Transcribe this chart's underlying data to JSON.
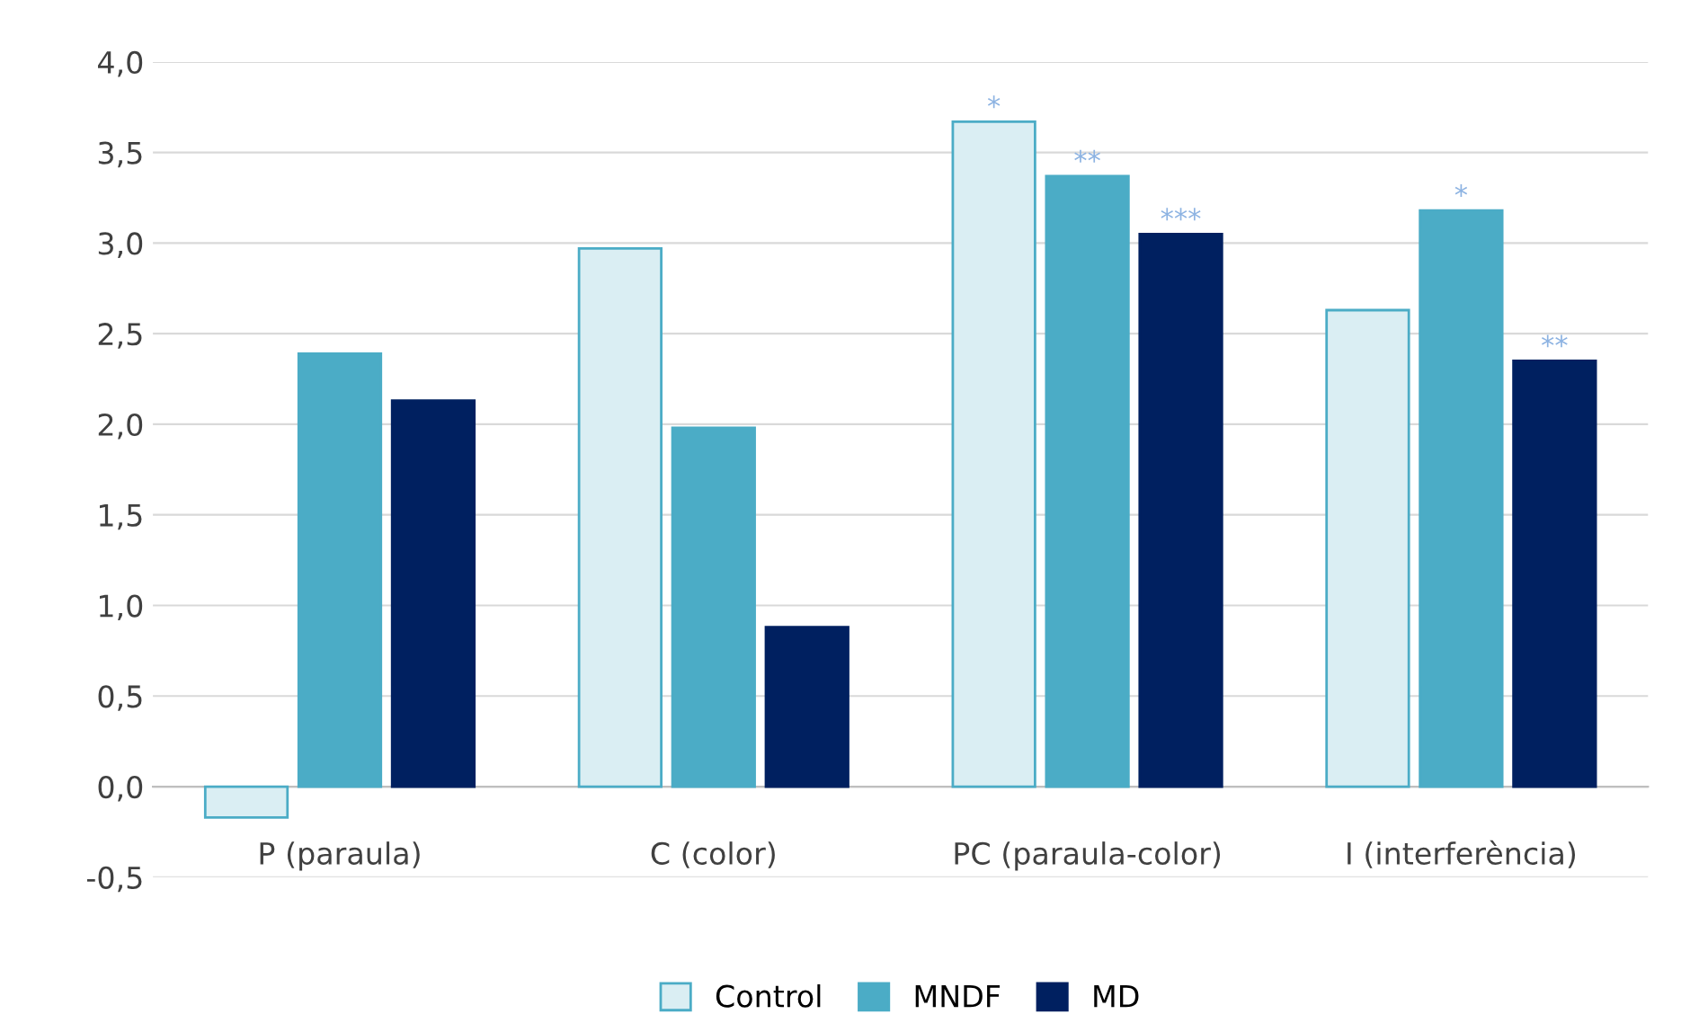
{
  "chart_data": {
    "type": "bar",
    "categories": [
      "P (paraula)",
      "C (color)",
      "PC (paraula-color)",
      "I (interferència)"
    ],
    "series": [
      {
        "name": "Control",
        "color": "#daeef3",
        "values": [
          -0.17,
          2.97,
          3.67,
          2.63
        ],
        "value_labels": [
          null,
          null,
          "*",
          null
        ]
      },
      {
        "name": "MNDF",
        "color": "#4bacc6",
        "values": [
          2.39,
          1.98,
          3.37,
          3.18
        ],
        "value_labels": [
          null,
          null,
          "**",
          "*"
        ]
      },
      {
        "name": "MD",
        "color": "#002060",
        "values": [
          2.13,
          0.88,
          3.05,
          2.35
        ],
        "value_labels": [
          null,
          null,
          "***",
          "**"
        ]
      }
    ],
    "ylim": [
      -0.5,
      4.0
    ],
    "yticks": [
      {
        "value": -0.5,
        "label": "-0,5"
      },
      {
        "value": 0,
        "label": "0,0"
      },
      {
        "value": 0.5,
        "label": "0,5"
      },
      {
        "value": 1.0,
        "label": "1,0"
      },
      {
        "value": 1.5,
        "label": "1,5"
      },
      {
        "value": 2.0,
        "label": "2,0"
      },
      {
        "value": 2.5,
        "label": "2,5"
      },
      {
        "value": 3.0,
        "label": "3,0"
      },
      {
        "value": 3.5,
        "label": "3,5"
      },
      {
        "value": 4.0,
        "label": "4,0"
      }
    ],
    "grid": "y",
    "legend": "bottom"
  }
}
